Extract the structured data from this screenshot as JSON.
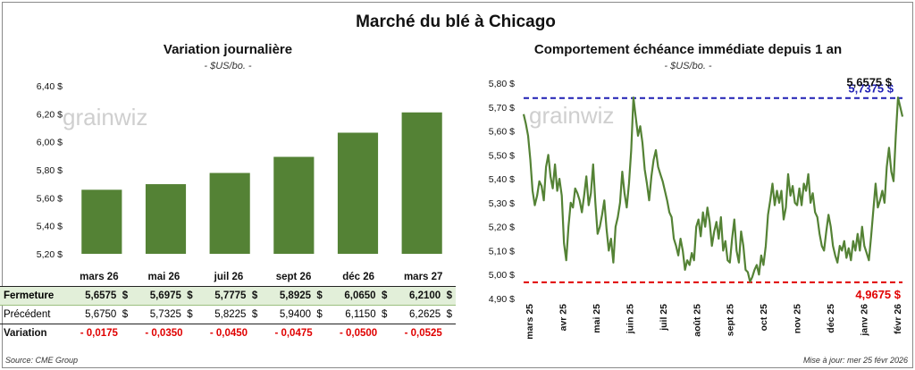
{
  "header": {
    "main_title": "Marché du blé à Chicago"
  },
  "left_panel": {
    "title": "Variation journalière",
    "subtitle": "- $US/bo. -"
  },
  "right_panel": {
    "title": "Comportement échéance immédiate depuis 1 an",
    "subtitle": "- $US/bo. -"
  },
  "watermark": "grainwiz",
  "table": {
    "headers": [
      "mars 26",
      "mai 26",
      "juil 26",
      "sept 26",
      "déc 26",
      "mars 27"
    ],
    "rows": [
      {
        "label": "Fermeture",
        "values": [
          "5,6575",
          "5,6975",
          "5,7775",
          "5,8925",
          "6,0650",
          "6,2100"
        ],
        "unit": "$"
      },
      {
        "label": "Précédent",
        "values": [
          "5,6750",
          "5,7325",
          "5,8225",
          "5,9400",
          "6,1150",
          "6,2625"
        ],
        "unit": "$"
      },
      {
        "label": "Variation",
        "values": [
          "- 0,0175",
          "- 0,0350",
          "- 0,0450",
          "- 0,0475",
          "- 0,0500",
          "- 0,0525"
        ],
        "unit": ""
      }
    ]
  },
  "footer": {
    "source": "Source: CME Group",
    "updated": "Mise à jour: mer 25 févr 2026"
  },
  "chart_data": [
    {
      "type": "bar",
      "categories": [
        "mars 26",
        "mai 26",
        "juil 26",
        "sept 26",
        "déc 26",
        "mars 27"
      ],
      "values": [
        5.6575,
        5.6975,
        5.7775,
        5.8925,
        6.065,
        6.21
      ],
      "title": "Variation journalière",
      "subtitle": "- $US/bo. -",
      "ylim": [
        5.2,
        6.4
      ],
      "yticks": [
        "6,40 $",
        "6,20 $",
        "6,00 $",
        "5,80 $",
        "5,60 $",
        "5,40 $",
        "5,20 $"
      ],
      "grid": false,
      "color": "#548235"
    },
    {
      "type": "line",
      "title": "Comportement échéance immédiate depuis 1 an",
      "subtitle": "- $US/bo. -",
      "ylim": [
        4.9,
        5.8
      ],
      "yticks": [
        "5,80 $",
        "5,70 $",
        "5,60 $",
        "5,50 $",
        "5,40 $",
        "5,30 $",
        "5,20 $",
        "5,10 $",
        "5,00 $",
        "4,90 $"
      ],
      "x_labels": [
        "mars 25",
        "avr 25",
        "mai 25",
        "juin 25",
        "juil 25",
        "août 25",
        "sept 25",
        "oct 25",
        "nov 25",
        "déc 25",
        "janv 26",
        "févr 26"
      ],
      "series": [
        {
          "values": [
            5.67,
            5.63,
            5.58,
            5.48,
            5.35,
            5.29,
            5.33,
            5.39,
            5.37,
            5.31,
            5.45,
            5.5,
            5.41,
            5.36,
            5.46,
            5.35,
            5.4,
            5.33,
            5.13,
            5.06,
            5.2,
            5.3,
            5.28,
            5.36,
            5.34,
            5.31,
            5.26,
            5.33,
            5.41,
            5.29,
            5.34,
            5.46,
            5.3,
            5.17,
            5.2,
            5.25,
            5.31,
            5.19,
            5.1,
            5.15,
            5.05,
            5.2,
            5.24,
            5.3,
            5.43,
            5.34,
            5.28,
            5.38,
            5.52,
            5.74,
            5.66,
            5.58,
            5.62,
            5.55,
            5.44,
            5.38,
            5.31,
            5.41,
            5.48,
            5.52,
            5.45,
            5.42,
            5.39,
            5.35,
            5.31,
            5.26,
            5.24,
            5.15,
            5.12,
            5.08,
            5.15,
            5.1,
            5.02,
            5.06,
            5.04,
            5.09,
            5.06,
            5.2,
            5.23,
            5.16,
            5.26,
            5.2,
            5.28,
            5.22,
            5.12,
            5.18,
            5.22,
            5.15,
            5.24,
            5.1,
            5.14,
            5.06,
            5.05,
            5.15,
            5.23,
            5.1,
            5.05,
            5.18,
            5.12,
            5.02,
            5.01,
            4.97,
            4.99,
            5.02,
            5.04,
            5.0,
            5.08,
            5.04,
            5.12,
            5.25,
            5.31,
            5.38,
            5.29,
            5.35,
            5.3,
            5.35,
            5.23,
            5.28,
            5.42,
            5.33,
            5.37,
            5.3,
            5.29,
            5.36,
            5.29,
            5.38,
            5.35,
            5.42,
            5.3,
            5.34,
            5.26,
            5.24,
            5.17,
            5.12,
            5.1,
            5.18,
            5.25,
            5.2,
            5.12,
            5.08,
            5.05,
            5.12,
            5.1,
            5.14,
            5.07,
            5.11,
            5.06,
            5.14,
            5.1,
            5.17,
            5.1,
            5.2,
            5.12,
            5.09,
            5.06,
            5.16,
            5.27,
            5.38,
            5.28,
            5.31,
            5.35,
            5.3,
            5.45,
            5.53,
            5.43,
            5.39,
            5.58,
            5.74,
            5.7,
            5.66
          ]
        }
      ],
      "reference_lines": [
        {
          "value": 5.7375,
          "label": "5,7375 $",
          "color": "#1f1fb4"
        },
        {
          "value": 4.9675,
          "label": "4,9675 $",
          "color": "#e00000"
        }
      ],
      "last_value_label": "5,6575 $",
      "color": "#548235",
      "grid": false
    }
  ]
}
